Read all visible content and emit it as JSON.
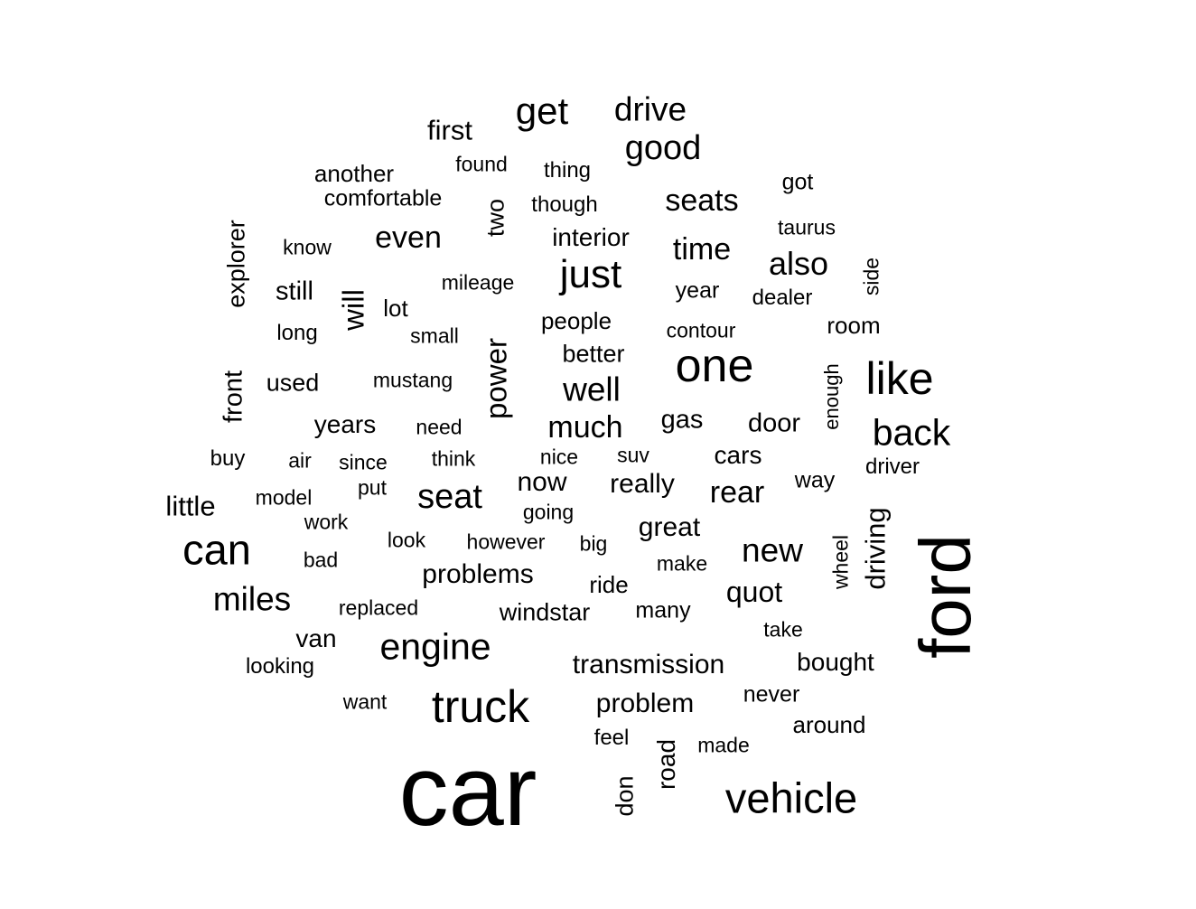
{
  "cloud": {
    "text_color": "#000000",
    "background": "#ffffff",
    "words": [
      {
        "text": "car"
      },
      {
        "text": "ford"
      },
      {
        "text": "one"
      },
      {
        "text": "like"
      },
      {
        "text": "can"
      },
      {
        "text": "truck"
      },
      {
        "text": "vehicle"
      },
      {
        "text": "just"
      },
      {
        "text": "engine"
      },
      {
        "text": "get"
      },
      {
        "text": "back"
      },
      {
        "text": "miles"
      },
      {
        "text": "good"
      },
      {
        "text": "seat"
      },
      {
        "text": "new"
      },
      {
        "text": "drive"
      },
      {
        "text": "well"
      },
      {
        "text": "also"
      },
      {
        "text": "much"
      },
      {
        "text": "time"
      },
      {
        "text": "seats"
      },
      {
        "text": "even"
      },
      {
        "text": "power"
      },
      {
        "text": "rear"
      },
      {
        "text": "transmission"
      },
      {
        "text": "quot"
      },
      {
        "text": "problems"
      },
      {
        "text": "problem"
      },
      {
        "text": "driving"
      },
      {
        "text": "will"
      },
      {
        "text": "first"
      },
      {
        "text": "great"
      },
      {
        "text": "bought"
      },
      {
        "text": "really"
      },
      {
        "text": "door"
      },
      {
        "text": "little"
      },
      {
        "text": "now"
      },
      {
        "text": "windstar"
      },
      {
        "text": "interior"
      },
      {
        "text": "explorer"
      },
      {
        "text": "cars"
      },
      {
        "text": "front"
      },
      {
        "text": "gas"
      },
      {
        "text": "years"
      },
      {
        "text": "van"
      },
      {
        "text": "still"
      },
      {
        "text": "road"
      },
      {
        "text": "better"
      },
      {
        "text": "another"
      },
      {
        "text": "comfortable"
      },
      {
        "text": "people"
      },
      {
        "text": "two"
      },
      {
        "text": "room"
      },
      {
        "text": "around"
      },
      {
        "text": "used"
      },
      {
        "text": "never"
      },
      {
        "text": "many"
      },
      {
        "text": "year"
      },
      {
        "text": "ride"
      },
      {
        "text": "dealer"
      },
      {
        "text": "lot"
      },
      {
        "text": "don"
      },
      {
        "text": "got"
      },
      {
        "text": "way"
      },
      {
        "text": "looking"
      },
      {
        "text": "thing"
      },
      {
        "text": "though"
      },
      {
        "text": "driver"
      },
      {
        "text": "replaced"
      },
      {
        "text": "found"
      },
      {
        "text": "mileage"
      },
      {
        "text": "contour"
      },
      {
        "text": "model"
      },
      {
        "text": "buy"
      },
      {
        "text": "however"
      },
      {
        "text": "make"
      },
      {
        "text": "long"
      },
      {
        "text": "small"
      },
      {
        "text": "know"
      },
      {
        "text": "mustang"
      },
      {
        "text": "feel"
      },
      {
        "text": "want"
      },
      {
        "text": "going"
      },
      {
        "text": "wheel"
      },
      {
        "text": "work"
      },
      {
        "text": "made"
      },
      {
        "text": "look"
      },
      {
        "text": "taurus"
      },
      {
        "text": "take"
      },
      {
        "text": "since"
      },
      {
        "text": "think"
      },
      {
        "text": "nice"
      },
      {
        "text": "bad"
      },
      {
        "text": "big"
      },
      {
        "text": "side"
      },
      {
        "text": "enough"
      },
      {
        "text": "need"
      },
      {
        "text": "suv"
      },
      {
        "text": "air"
      },
      {
        "text": "put"
      }
    ]
  }
}
